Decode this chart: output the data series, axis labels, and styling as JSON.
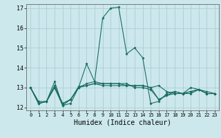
{
  "xlabel": "Humidex (Indice chaleur)",
  "bg_color": "#cce8ec",
  "grid_color": "#aacdd4",
  "line_color": "#1a6b62",
  "xlim": [
    -0.5,
    23.5
  ],
  "ylim": [
    11.85,
    17.2
  ],
  "yticks": [
    12,
    13,
    14,
    15,
    16,
    17
  ],
  "xticks": [
    0,
    1,
    2,
    3,
    4,
    5,
    6,
    7,
    8,
    9,
    10,
    11,
    12,
    13,
    14,
    15,
    16,
    17,
    18,
    19,
    20,
    21,
    22,
    23
  ],
  "lines": [
    [
      13.0,
      12.3,
      12.3,
      13.3,
      12.1,
      12.2,
      13.0,
      13.2,
      13.3,
      16.5,
      17.0,
      17.05,
      14.7,
      15.0,
      14.5,
      12.2,
      12.3,
      12.7,
      12.8,
      12.7,
      13.0,
      12.9,
      12.7,
      12.7
    ],
    [
      13.0,
      12.2,
      12.3,
      13.1,
      12.2,
      12.4,
      13.05,
      13.1,
      13.2,
      13.1,
      13.1,
      13.1,
      13.1,
      13.1,
      13.1,
      13.0,
      12.4,
      12.6,
      12.8,
      12.7,
      12.8,
      12.9,
      12.7,
      12.7
    ],
    [
      13.0,
      12.2,
      12.3,
      13.0,
      12.2,
      12.4,
      13.0,
      14.2,
      13.3,
      13.2,
      13.2,
      13.2,
      13.1,
      13.1,
      13.1,
      13.0,
      13.1,
      12.8,
      12.7,
      12.7,
      12.7,
      12.9,
      12.7,
      12.7
    ],
    [
      13.0,
      12.2,
      12.3,
      13.0,
      12.1,
      12.4,
      13.0,
      13.1,
      13.2,
      13.2,
      13.2,
      13.2,
      13.2,
      13.0,
      13.0,
      12.9,
      12.4,
      12.6,
      12.7,
      12.7,
      12.8,
      12.9,
      12.8,
      12.7
    ]
  ]
}
